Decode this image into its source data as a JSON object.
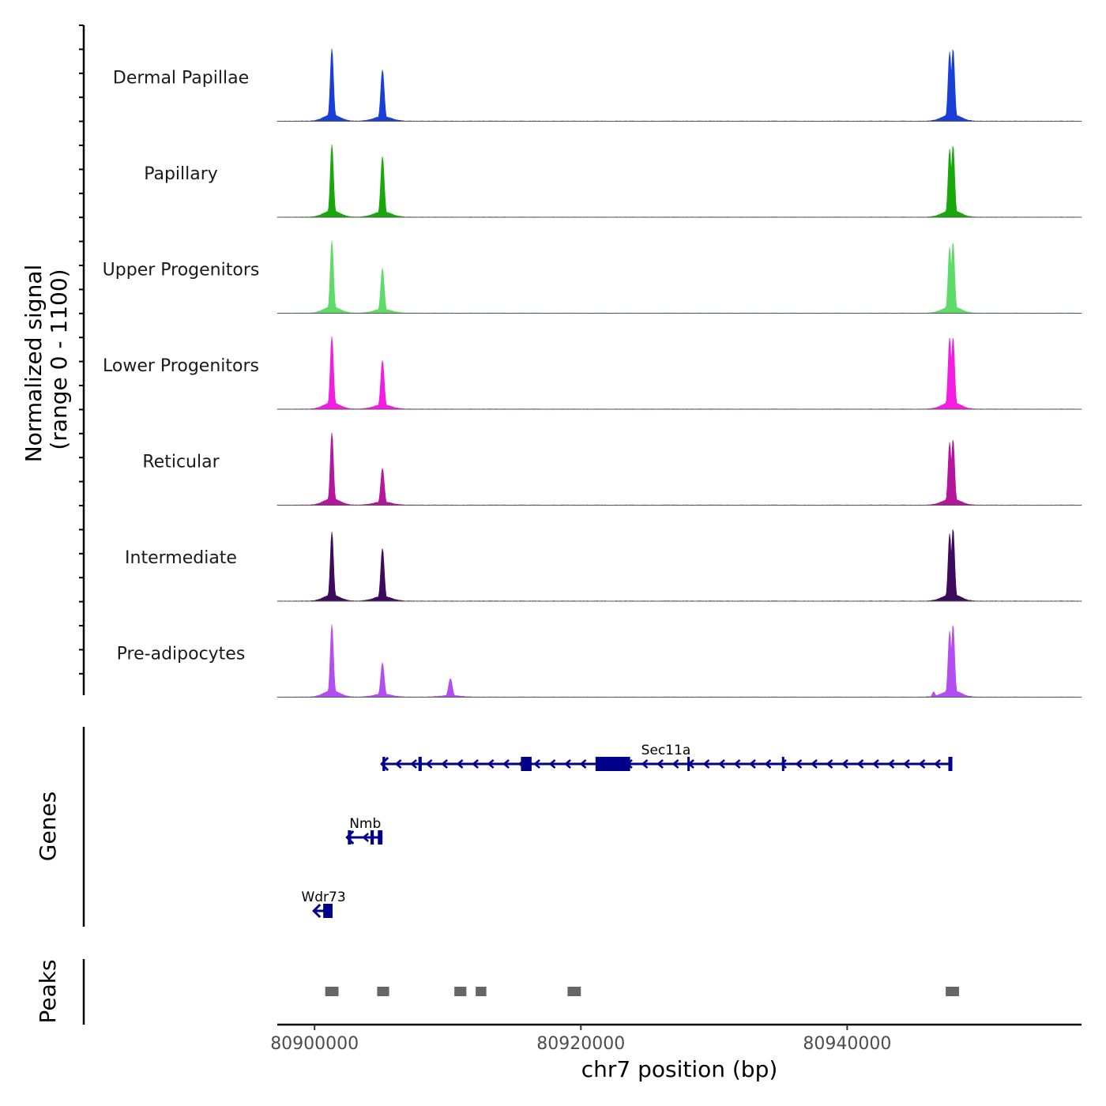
{
  "chart_data": {
    "type": "coverage_track",
    "chromosome": "chr7",
    "xlabel": "chr7 position (bp)",
    "xlim": [
      80897200,
      80957600
    ],
    "x_ticks": [
      80900000,
      80920000,
      80940000
    ],
    "x_tick_labels": [
      "80900000",
      "80920000",
      "80940000"
    ],
    "coverage": {
      "ylabel_line1": "Normalized signal",
      "ylabel_line2": "(range 0 - 1100)",
      "range": [
        0,
        1100
      ],
      "tracks": [
        {
          "name": "Dermal Papillae",
          "color": "#1a3fd6",
          "peaks": [
            {
              "pos": 80901300,
              "height": 1100,
              "width": 120
            },
            {
              "pos": 80905100,
              "height": 780,
              "width": 130
            },
            {
              "pos": 80947700,
              "height": 1050,
              "width": 120
            },
            {
              "pos": 80947950,
              "height": 1100,
              "width": 120
            }
          ]
        },
        {
          "name": "Papillary",
          "color": "#19a80c",
          "peaks": [
            {
              "pos": 80901300,
              "height": 1100,
              "width": 120
            },
            {
              "pos": 80905100,
              "height": 920,
              "width": 130
            },
            {
              "pos": 80947700,
              "height": 1030,
              "width": 120
            },
            {
              "pos": 80947950,
              "height": 1090,
              "width": 120
            }
          ]
        },
        {
          "name": "Upper Progenitors",
          "color": "#5fdb6a",
          "peaks": [
            {
              "pos": 80901300,
              "height": 1100,
              "width": 120
            },
            {
              "pos": 80905100,
              "height": 680,
              "width": 130
            },
            {
              "pos": 80947700,
              "height": 1000,
              "width": 120
            },
            {
              "pos": 80947950,
              "height": 1080,
              "width": 120
            }
          ]
        },
        {
          "name": "Lower Progenitors",
          "color": "#f21de0",
          "peaks": [
            {
              "pos": 80901300,
              "height": 1100,
              "width": 120
            },
            {
              "pos": 80905100,
              "height": 740,
              "width": 130
            },
            {
              "pos": 80947700,
              "height": 1080,
              "width": 120
            },
            {
              "pos": 80947950,
              "height": 1090,
              "width": 120
            }
          ]
        },
        {
          "name": "Reticular",
          "color": "#b5169e",
          "peaks": [
            {
              "pos": 80901300,
              "height": 1100,
              "width": 120
            },
            {
              "pos": 80905100,
              "height": 560,
              "width": 130
            },
            {
              "pos": 80947700,
              "height": 950,
              "width": 120
            },
            {
              "pos": 80947950,
              "height": 1000,
              "width": 120
            }
          ]
        },
        {
          "name": "Intermediate",
          "color": "#3d0a5c",
          "peaks": [
            {
              "pos": 80901300,
              "height": 1050,
              "width": 120
            },
            {
              "pos": 80905100,
              "height": 800,
              "width": 130
            },
            {
              "pos": 80947700,
              "height": 1020,
              "width": 120
            },
            {
              "pos": 80947950,
              "height": 1100,
              "width": 120
            }
          ]
        },
        {
          "name": "Pre-adipocytes",
          "color": "#b34ff0",
          "peaks": [
            {
              "pos": 80901300,
              "height": 1100,
              "width": 120
            },
            {
              "pos": 80905100,
              "height": 520,
              "width": 130
            },
            {
              "pos": 80910200,
              "height": 280,
              "width": 140
            },
            {
              "pos": 80947700,
              "height": 1000,
              "width": 120
            },
            {
              "pos": 80947950,
              "height": 1100,
              "width": 120
            },
            {
              "pos": 80946500,
              "height": 80,
              "width": 100
            }
          ]
        }
      ]
    },
    "genes": {
      "ylabel": "Genes",
      "color": "#00008b",
      "items": [
        {
          "name": "Sec11a",
          "strand": "-",
          "start": 80905100,
          "end": 80947900,
          "exons": [
            [
              80905100,
              80905300
            ],
            [
              80907800,
              80908050
            ],
            [
              80915500,
              80916300
            ],
            [
              80921100,
              80923700
            ],
            [
              80928000,
              80928100
            ],
            [
              80935100,
              80935200
            ],
            [
              80947600,
              80947900
            ]
          ]
        },
        {
          "name": "Nmb",
          "strand": "-",
          "start": 80902500,
          "end": 80905100,
          "exons": [
            [
              80902500,
              80902750
            ],
            [
              80904200,
              80904450
            ],
            [
              80904750,
              80905100
            ]
          ]
        },
        {
          "name": "Wdr73",
          "strand": "-",
          "start": 80900000,
          "end": 80901350,
          "exons": [
            [
              80900650,
              80901350
            ]
          ]
        }
      ]
    },
    "peaks": {
      "ylabel": "Peaks",
      "color": "#666666",
      "regions": [
        [
          80900800,
          80901800
        ],
        [
          80904700,
          80905600
        ],
        [
          80910500,
          80911400
        ],
        [
          80912100,
          80912900
        ],
        [
          80919000,
          80920000
        ],
        [
          80947400,
          80948400
        ]
      ]
    }
  }
}
